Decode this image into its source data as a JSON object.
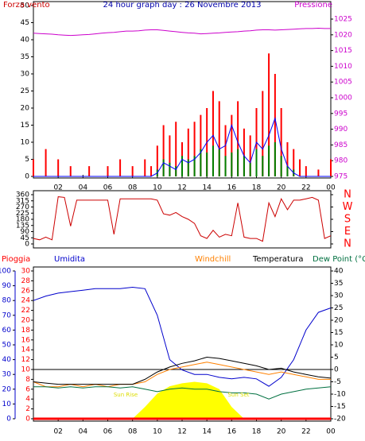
{
  "chart_data": [
    {
      "type": "bar",
      "title": "24 hour graph day : 26 Novembre 2013",
      "ylabel": "Forza vento",
      "y2label": "Pressione",
      "x": [
        0,
        0.5,
        1,
        1.5,
        2,
        2.5,
        3,
        3.5,
        4,
        4.5,
        5,
        5.5,
        6,
        6.5,
        7,
        7.5,
        8,
        8.5,
        9,
        9.5,
        10,
        10.5,
        11,
        11.5,
        12,
        12.5,
        13,
        13.5,
        14,
        14.5,
        15,
        15.5,
        16,
        16.5,
        17,
        17.5,
        18,
        18.5,
        19,
        19.5,
        20,
        20.5,
        21,
        21.5,
        22,
        22.5,
        23,
        23.5,
        24
      ],
      "xlim": [
        0,
        24
      ],
      "xticks": [
        {
          "value": 2,
          "label": "02"
        },
        {
          "value": 4,
          "label": "04"
        },
        {
          "value": 6,
          "label": "06"
        },
        {
          "value": 8,
          "label": "08"
        },
        10,
        12,
        14,
        16,
        18,
        20,
        22,
        {
          "value": 24,
          "label": "00"
        }
      ],
      "ylim": [
        0,
        50
      ],
      "yticks": [
        0,
        5,
        10,
        15,
        20,
        25,
        30,
        35,
        40,
        45,
        50
      ],
      "y2lim": [
        975,
        1029.3
      ],
      "y2ticks": [
        975,
        980,
        985,
        990,
        995,
        1000,
        1005,
        1010,
        1015,
        1020,
        1025
      ],
      "series": [
        {
          "type": "bar",
          "color": "#ff0000",
          "values": [
            5,
            0,
            8,
            0,
            5,
            0,
            3,
            0,
            0,
            3,
            0,
            0,
            3,
            0,
            5,
            0,
            3,
            0,
            5,
            3,
            9,
            15,
            12,
            16,
            10,
            14,
            16,
            18,
            20,
            25,
            22,
            15,
            18,
            22,
            14,
            12,
            20,
            25,
            36,
            30,
            20,
            10,
            8,
            5,
            3,
            0,
            2,
            0,
            5
          ]
        },
        {
          "type": "bar",
          "color": "#008000",
          "values": [
            0,
            0,
            0,
            0,
            0,
            0,
            0,
            0,
            0,
            0,
            0,
            0,
            0,
            0,
            0,
            0,
            0,
            0,
            0,
            0,
            2,
            5,
            4,
            3,
            6,
            5,
            6,
            8,
            7,
            9,
            8,
            6,
            7,
            8,
            6,
            4,
            8,
            6,
            9,
            10,
            6,
            3,
            2,
            0,
            0,
            0,
            0,
            0,
            0
          ]
        },
        {
          "type": "line",
          "color": "#0000ff",
          "values": [
            0,
            0,
            0,
            0,
            0,
            0,
            0,
            0,
            0,
            0,
            0,
            0,
            0,
            0,
            0,
            0,
            0,
            0,
            0,
            0,
            1,
            4,
            3,
            2,
            5,
            4,
            5,
            7,
            10,
            12,
            8,
            9,
            15,
            10,
            6,
            4,
            10,
            8,
            12,
            17,
            8,
            3,
            1,
            0,
            0,
            0,
            0,
            0,
            0
          ]
        },
        {
          "type": "line",
          "axis": "y2",
          "color": "#cc00cc",
          "values": [
            1020.5,
            1020.4,
            1020.3,
            1020.2,
            1020.0,
            1019.9,
            1019.8,
            1019.9,
            1020.0,
            1020.1,
            1020.3,
            1020.5,
            1020.7,
            1020.8,
            1021.0,
            1021.2,
            1021.2,
            1021.3,
            1021.5,
            1021.6,
            1021.6,
            1021.4,
            1021.2,
            1021.0,
            1020.8,
            1020.6,
            1020.5,
            1020.3,
            1020.4,
            1020.5,
            1020.6,
            1020.8,
            1020.9,
            1021.0,
            1021.2,
            1021.3,
            1021.5,
            1021.6,
            1021.6,
            1021.5,
            1021.6,
            1021.7,
            1021.8,
            1021.9,
            1022.0,
            1022.0,
            1022.1,
            1022.0,
            1022.0
          ]
        }
      ]
    },
    {
      "type": "line",
      "x": [
        0,
        0.5,
        1,
        1.5,
        2,
        2.5,
        3,
        3.5,
        4,
        4.5,
        5,
        5.5,
        6,
        6.5,
        7,
        7.5,
        8,
        8.5,
        9,
        9.5,
        10,
        10.5,
        11,
        11.5,
        12,
        12.5,
        13,
        13.5,
        14,
        14.5,
        15,
        15.5,
        16,
        16.5,
        17,
        17.5,
        18,
        18.5,
        19,
        19.5,
        20,
        20.5,
        21,
        21.5,
        22,
        22.5,
        23,
        23.5,
        24
      ],
      "xlim": [
        0,
        24
      ],
      "ylim": [
        0,
        360
      ],
      "yticks": [
        0,
        45,
        90,
        135,
        180,
        225,
        270,
        315,
        360
      ],
      "y2lim": [
        0,
        360
      ],
      "y2ticks": [
        {
          "value": 360,
          "label": "N"
        },
        {
          "value": 270,
          "label": "W"
        },
        {
          "value": 180,
          "label": "S"
        },
        {
          "value": 90,
          "label": "E"
        },
        {
          "value": 0,
          "label": "N"
        }
      ],
      "series": [
        {
          "type": "line",
          "color": "#cc0000",
          "values": [
            40,
            30,
            50,
            30,
            345,
            340,
            130,
            320,
            320,
            320,
            320,
            320,
            320,
            70,
            330,
            330,
            330,
            330,
            330,
            330,
            320,
            220,
            210,
            230,
            200,
            180,
            150,
            60,
            40,
            100,
            50,
            70,
            60,
            300,
            50,
            40,
            40,
            20,
            300,
            200,
            330,
            250,
            320,
            320,
            330,
            340,
            320,
            40,
            60
          ]
        }
      ]
    },
    {
      "type": "line",
      "x": [
        0,
        1,
        2,
        3,
        4,
        5,
        6,
        7,
        8,
        9,
        10,
        11,
        12,
        13,
        14,
        15,
        16,
        17,
        18,
        19,
        20,
        21,
        22,
        23,
        24
      ],
      "xlim": [
        0,
        24
      ],
      "xticks": [
        {
          "value": 2,
          "label": "02"
        },
        {
          "value": 4,
          "label": "04"
        },
        {
          "value": 6,
          "label": "06"
        },
        {
          "value": 8,
          "label": "08"
        },
        10,
        12,
        14,
        16,
        18,
        20,
        22,
        {
          "value": 24,
          "label": "00"
        }
      ],
      "ylim": [
        0,
        30
      ],
      "yticks": [
        0,
        2,
        4,
        6,
        8,
        10,
        12,
        14,
        16,
        18,
        20,
        22,
        24,
        26,
        28,
        30
      ],
      "hlim": [
        0,
        100
      ],
      "hticks": [
        0,
        10,
        20,
        30,
        40,
        50,
        60,
        70,
        80,
        90,
        100
      ],
      "y2lim": [
        -20,
        40
      ],
      "y2ticks": [
        -20,
        -15,
        -10,
        -5,
        0,
        5,
        10,
        15,
        20,
        25,
        30,
        35,
        40
      ],
      "annotations": [
        "Sun Rise",
        "Sun Set"
      ],
      "series": [
        {
          "type": "area",
          "axis": "h",
          "color": "#ffff00",
          "values": [
            0,
            0,
            0,
            0,
            0,
            0,
            0,
            0,
            0,
            8,
            17,
            22,
            24,
            25,
            24,
            20,
            8,
            0,
            0,
            0,
            0,
            0,
            0,
            0,
            0
          ]
        },
        {
          "name": "Pioggia",
          "type": "line",
          "axis": "y",
          "color": "#ff0000",
          "values": [
            0,
            0,
            0,
            0,
            0,
            0,
            0,
            0,
            0,
            0,
            0,
            0,
            0,
            0,
            0,
            0,
            0,
            0,
            0,
            0,
            0,
            0,
            0,
            0,
            0
          ]
        },
        {
          "name": "Umidita",
          "type": "line",
          "axis": "h",
          "color": "#0000cc",
          "values": [
            80,
            83,
            85,
            86,
            87,
            88,
            88,
            88,
            89,
            88,
            70,
            40,
            33,
            30,
            30,
            28,
            27,
            28,
            27,
            22,
            28,
            40,
            60,
            72,
            75
          ]
        },
        {
          "name": "Windchill",
          "type": "line",
          "axis": "y2",
          "color": "#ff8000",
          "values": [
            -5,
            -7,
            -7,
            -6,
            -7,
            -6,
            -7,
            -6,
            -6,
            -5,
            -2,
            0,
            1,
            2,
            3,
            2,
            1,
            0,
            -1,
            -2,
            -1,
            -2,
            -3,
            -4,
            -4
          ]
        },
        {
          "name": "Temperatura",
          "type": "line",
          "axis": "y2",
          "color": "#000000",
          "values": [
            -5,
            -5.5,
            -6,
            -6,
            -6,
            -6,
            -6,
            -6,
            -6,
            -4,
            -1,
            1,
            2.5,
            3.5,
            5,
            4.5,
            3.5,
            2.5,
            1.5,
            0,
            0.5,
            -1,
            -2,
            -3,
            -3.5
          ]
        },
        {
          "name": "Dew Point (°C",
          "type": "line",
          "axis": "y2",
          "color": "#007040",
          "values": [
            -7,
            -7,
            -7.5,
            -7,
            -7.5,
            -7,
            -7,
            -7.5,
            -7,
            -8,
            -9,
            -8,
            -7.5,
            -8,
            -8,
            -9,
            -9.5,
            -9.5,
            -10,
            -12,
            -10,
            -9,
            -8,
            -7.5,
            -7
          ]
        }
      ]
    }
  ]
}
